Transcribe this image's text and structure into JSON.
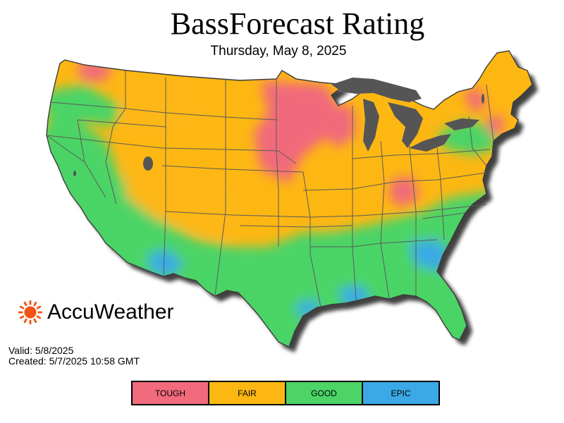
{
  "header": {
    "title": "BassForecast Rating",
    "subtitle": "Thursday, May 8, 2025"
  },
  "brand": {
    "name": "AccuWeather",
    "logo_icon": "sun-icon",
    "logo_color": "#F05514"
  },
  "meta": {
    "valid": "Valid: 5/8/2025",
    "created": "Created: 5/7/2025 10:58 GMT"
  },
  "legend": {
    "items": [
      {
        "label": "TOUGH",
        "color": "#F16B7C"
      },
      {
        "label": "FAIR",
        "color": "#FDB713"
      },
      {
        "label": "GOOD",
        "color": "#4CD466"
      },
      {
        "label": "EPIC",
        "color": "#3AA9E6"
      }
    ]
  },
  "map": {
    "water_color": "#555555",
    "border_color": "#5A5A5A"
  }
}
